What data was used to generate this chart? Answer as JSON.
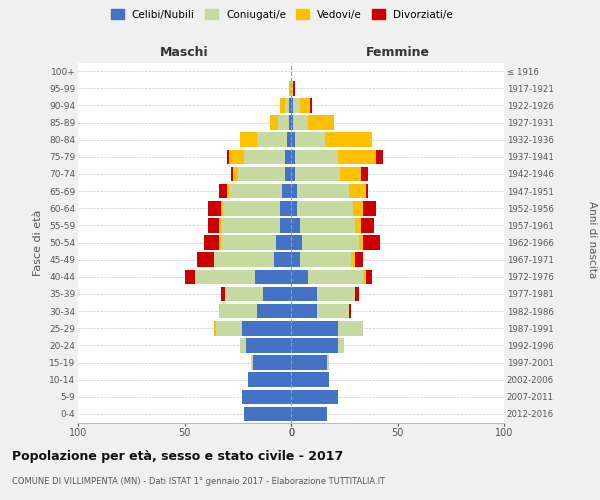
{
  "age_groups": [
    "0-4",
    "5-9",
    "10-14",
    "15-19",
    "20-24",
    "25-29",
    "30-34",
    "35-39",
    "40-44",
    "45-49",
    "50-54",
    "55-59",
    "60-64",
    "65-69",
    "70-74",
    "75-79",
    "80-84",
    "85-89",
    "90-94",
    "95-99",
    "100+"
  ],
  "birth_years": [
    "2012-2016",
    "2007-2011",
    "2002-2006",
    "1997-2001",
    "1992-1996",
    "1987-1991",
    "1982-1986",
    "1977-1981",
    "1972-1976",
    "1967-1971",
    "1962-1966",
    "1957-1961",
    "1952-1956",
    "1947-1951",
    "1942-1946",
    "1937-1941",
    "1932-1936",
    "1927-1931",
    "1922-1926",
    "1917-1921",
    "≤ 1916"
  ],
  "maschi": {
    "celibi": [
      22,
      23,
      20,
      18,
      21,
      23,
      16,
      13,
      17,
      8,
      7,
      5,
      5,
      4,
      3,
      3,
      2,
      1,
      1,
      0,
      0
    ],
    "coniugati": [
      0,
      0,
      0,
      1,
      3,
      12,
      18,
      18,
      28,
      28,
      26,
      28,
      27,
      25,
      22,
      19,
      14,
      5,
      2,
      0,
      0
    ],
    "vedovi": [
      0,
      0,
      0,
      0,
      0,
      1,
      0,
      0,
      0,
      0,
      1,
      1,
      1,
      1,
      2,
      7,
      8,
      4,
      2,
      1,
      0
    ],
    "divorziati": [
      0,
      0,
      0,
      0,
      0,
      0,
      0,
      2,
      5,
      8,
      7,
      5,
      6,
      4,
      1,
      1,
      0,
      0,
      0,
      0,
      0
    ]
  },
  "femmine": {
    "nubili": [
      17,
      22,
      18,
      17,
      22,
      22,
      12,
      12,
      8,
      4,
      5,
      4,
      3,
      3,
      2,
      2,
      2,
      1,
      1,
      0,
      0
    ],
    "coniugate": [
      0,
      0,
      0,
      1,
      3,
      12,
      15,
      18,
      26,
      24,
      27,
      26,
      26,
      24,
      21,
      20,
      14,
      7,
      3,
      1,
      0
    ],
    "vedove": [
      0,
      0,
      0,
      0,
      0,
      0,
      0,
      0,
      1,
      2,
      2,
      3,
      5,
      8,
      10,
      18,
      22,
      12,
      5,
      0,
      0
    ],
    "divorziate": [
      0,
      0,
      0,
      0,
      0,
      0,
      1,
      2,
      3,
      4,
      8,
      6,
      6,
      1,
      3,
      3,
      0,
      0,
      1,
      1,
      0
    ]
  },
  "colors": {
    "celibi": "#4472c4",
    "coniugati": "#c5d9a0",
    "vedovi": "#ffc000",
    "divorziati": "#cc0000"
  },
  "xlim": 100,
  "title": "Popolazione per età, sesso e stato civile - 2017",
  "subtitle": "COMUNE DI VILLIMPENTA (MN) - Dati ISTAT 1° gennaio 2017 - Elaborazione TUTTITALIA.IT",
  "ylabel_left": "Fasce di età",
  "ylabel_right": "Anni di nascita",
  "xlabel_maschi": "Maschi",
  "xlabel_femmine": "Femmine",
  "legend_labels": [
    "Celibi/Nubili",
    "Coniugati/e",
    "Vedovi/e",
    "Divorziati/e"
  ],
  "bg_color": "#f0f0f0",
  "plot_bg": "#ffffff"
}
